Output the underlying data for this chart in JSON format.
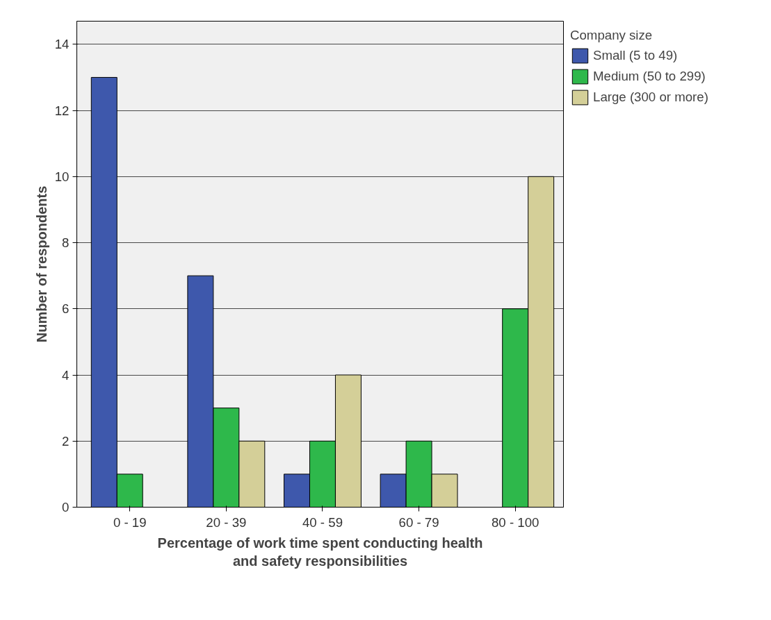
{
  "chart_data": {
    "type": "bar",
    "xlabel": "Percentage of work time spent conducting health\nand safety responsibilities",
    "ylabel": "Number of respondents",
    "legend_title": "Company size",
    "categories": [
      "0 - 19",
      "20 - 39",
      "40 - 59",
      "60 - 79",
      "80 - 100"
    ],
    "series": [
      {
        "name": "Small (5 to 49)",
        "color": "#3e58ac",
        "values": [
          13,
          7,
          1,
          1,
          null
        ]
      },
      {
        "name": "Medium (50 to 299)",
        "color": "#2eb84b",
        "values": [
          1,
          3,
          2,
          2,
          6
        ]
      },
      {
        "name": "Large (300 or more)",
        "color": "#d4cf98",
        "values": [
          null,
          2,
          4,
          1,
          10
        ]
      }
    ],
    "ylim": [
      0,
      14.7
    ],
    "yticks": [
      0,
      2,
      4,
      6,
      8,
      10,
      12,
      14
    ],
    "grid": "y",
    "legend": "top right"
  }
}
